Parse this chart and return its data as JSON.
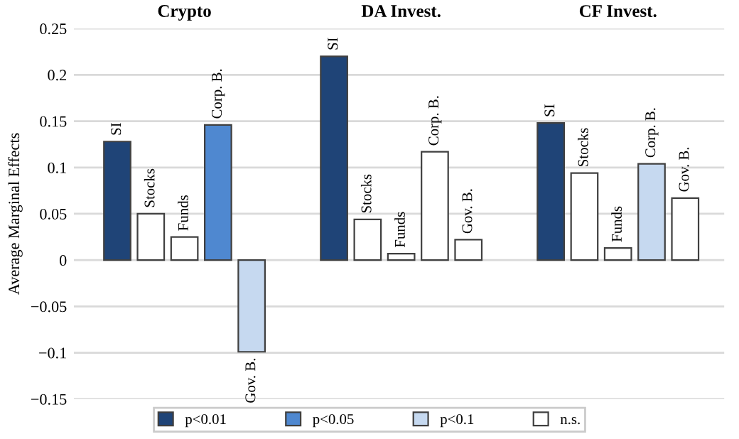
{
  "chart_data": {
    "type": "bar",
    "ylabel": "Average Marginal Effects",
    "categories": [
      "Crypto",
      "DA Invest.",
      "CF Invest."
    ],
    "legend": "bottom",
    "grid": "y",
    "ylim": [
      -0.15,
      0.25
    ],
    "yticks": [
      {
        "value": -0.15,
        "label": "−0.15"
      },
      {
        "value": -0.1,
        "label": "−0.1"
      },
      {
        "value": -0.05,
        "label": "−0.05"
      },
      0,
      0.05,
      0.1,
      0.15,
      0.2,
      0.25
    ],
    "series": [
      {
        "name": "SI",
        "colors": [
          "#1f4477",
          "#1f4477",
          "#1f4477"
        ],
        "values": [
          0.128,
          0.22,
          0.148
        ]
      },
      {
        "name": "Stocks",
        "colors": [
          "#ffffff",
          "#ffffff",
          "#ffffff"
        ],
        "values": [
          0.05,
          0.044,
          0.094
        ]
      },
      {
        "name": "Funds",
        "colors": [
          "#ffffff",
          "#ffffff",
          "#ffffff"
        ],
        "values": [
          0.025,
          0.007,
          0.013
        ]
      },
      {
        "name": "Corp. B.",
        "colors": [
          "#4f88d0",
          "#ffffff",
          "#c6d9f0"
        ],
        "values": [
          0.146,
          0.117,
          0.104
        ]
      },
      {
        "name": "Gov. B.",
        "colors": [
          "#c6d9f0",
          "#ffffff",
          "#ffffff"
        ],
        "values": [
          -0.099,
          0.022,
          0.067
        ]
      },
      {
        "name": "p<0.01",
        "color": "#1f4477",
        "values": [
          null,
          null,
          null
        ]
      },
      {
        "name": "p<0.05",
        "color": "#4f88d0",
        "values": [
          null,
          null,
          null
        ]
      },
      {
        "name": "p<0.1",
        "color": "#c6d9f0",
        "values": [
          null,
          null,
          null
        ]
      },
      {
        "name": "n.s.",
        "color": "#ffffff",
        "values": [
          null,
          null,
          null
        ]
      }
    ]
  }
}
